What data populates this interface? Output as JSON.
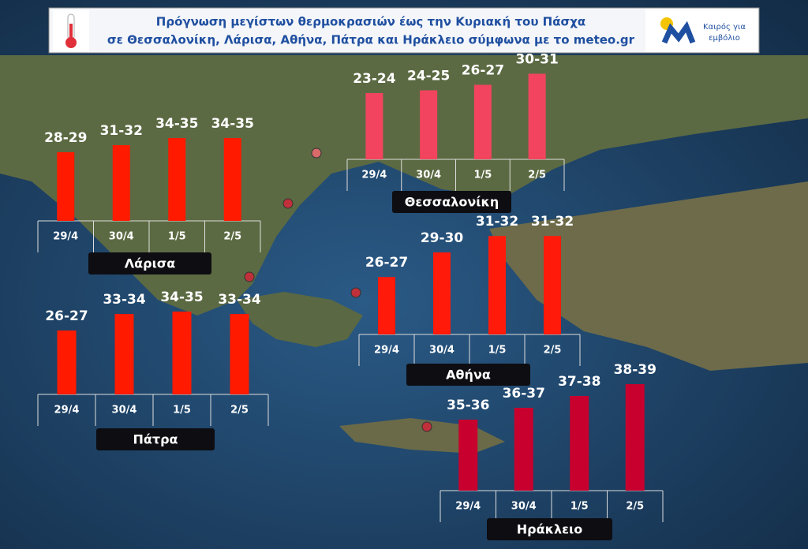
{
  "header": {
    "title_line1": "Πρόγνωση μεγίστων θερμοκρασιών  έως την Κυριακή του Πάσχα",
    "title_line2": "σε Θεσσαλονίκη, Λάρισα, Αθήνα, Πάτρα και Ηράκλειο σύμφωνα με το meteo.gr",
    "logo_line1": "Καιρός για",
    "logo_line2": "εμβόλιο"
  },
  "chart_data": [
    {
      "type": "bar",
      "title": "Λάρισα",
      "color": "#ff1a00",
      "categories": [
        "29/4",
        "30/4",
        "1/5",
        "2/5"
      ],
      "values": [
        29,
        32,
        35,
        35
      ],
      "value_labels": [
        "28-29",
        "31-32",
        "34-35",
        "34-35"
      ]
    },
    {
      "type": "bar",
      "title": "Θεσσαλονίκη",
      "color": "#f2445e",
      "categories": [
        "29/4",
        "30/4",
        "1/5",
        "2/5"
      ],
      "values": [
        24,
        25,
        27,
        31
      ],
      "value_labels": [
        "23-24",
        "24-25",
        "26-27",
        "30-31"
      ]
    },
    {
      "type": "bar",
      "title": "Πάτρα",
      "color": "#ff1a00",
      "categories": [
        "29/4",
        "30/4",
        "1/5",
        "2/5"
      ],
      "values": [
        27,
        34,
        35,
        34
      ],
      "value_labels": [
        "26-27",
        "33-34",
        "34-35",
        "33-34"
      ]
    },
    {
      "type": "bar",
      "title": "Αθήνα",
      "color": "#ff1a0a",
      "categories": [
        "29/4",
        "30/4",
        "1/5",
        "2/5"
      ],
      "values": [
        27,
        30,
        32,
        32
      ],
      "value_labels": [
        "26-27",
        "29-30",
        "31-32",
        "31-32"
      ]
    },
    {
      "type": "bar",
      "title": "Ηράκλειο",
      "color": "#c8002e",
      "categories": [
        "29/4",
        "30/4",
        "1/5",
        "2/5"
      ],
      "values": [
        36,
        37,
        38,
        39
      ],
      "value_labels": [
        "35-36",
        "36-37",
        "37-38",
        "38-39"
      ]
    }
  ]
}
